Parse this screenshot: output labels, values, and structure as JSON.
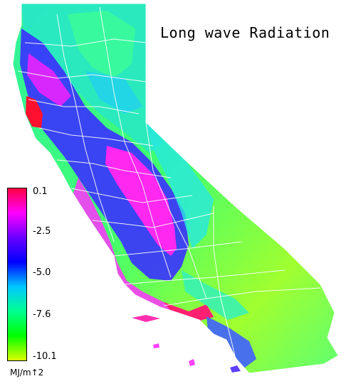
{
  "title": "Long wave Radiation",
  "legend": {
    "unit": "MJ/m↑2",
    "ticks": [
      "0.1",
      "-2.5",
      "-5.0",
      "-7.6",
      "-10.1"
    ],
    "colors": [
      "#ff0040",
      "#ff00ff",
      "#6a00ff",
      "#0000ff",
      "#00c8ff",
      "#00ff90",
      "#00ff00",
      "#ddff00"
    ]
  },
  "map": {
    "region": "California counties",
    "colors": {
      "coast_red": "#ff1030",
      "magenta": "#ff20ff",
      "blue": "#3030ff",
      "cyan": "#20e0f0",
      "green": "#30ff70",
      "yellow": "#c8ff20",
      "border": "#ffffff"
    }
  }
}
